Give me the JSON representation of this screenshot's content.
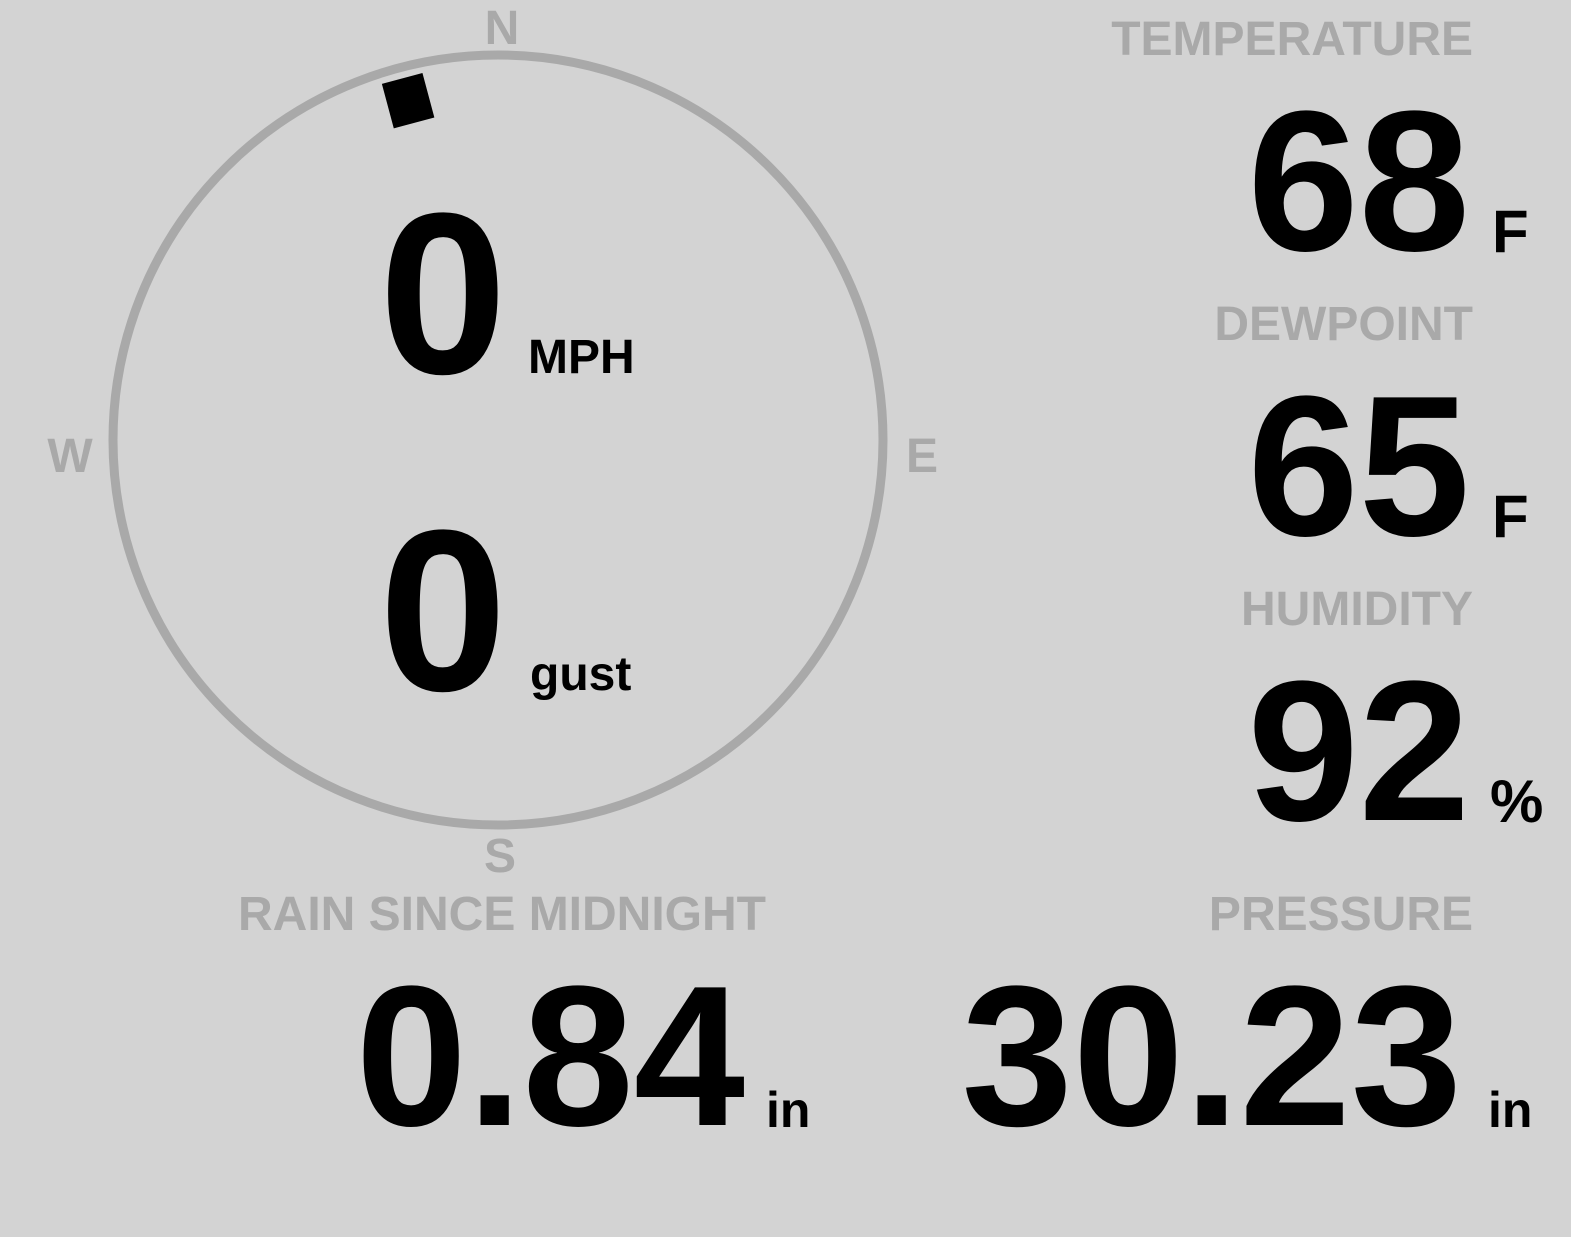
{
  "colors": {
    "background": "#d3d3d3",
    "label": "#a9a9a9",
    "value": "#000000",
    "dial": "#a9a9a9",
    "wind_indicator": "#000000"
  },
  "wind": {
    "compass": {
      "north": "N",
      "east": "E",
      "south": "S",
      "west": "W"
    },
    "direction_degrees": 345,
    "speed": "0",
    "speed_unit": "MPH",
    "gust": "0",
    "gust_unit": "gust"
  },
  "temperature": {
    "label": "TEMPERATURE",
    "value": "68",
    "unit": "F"
  },
  "dewpoint": {
    "label": "DEWPOINT",
    "value": "65",
    "unit": "F"
  },
  "humidity": {
    "label": "HUMIDITY",
    "value": "92",
    "unit": "%"
  },
  "rain": {
    "label": "RAIN SINCE MIDNIGHT",
    "value": "0.84",
    "unit": "in"
  },
  "pressure": {
    "label": "PRESSURE",
    "value": "30.23",
    "unit": "in"
  }
}
